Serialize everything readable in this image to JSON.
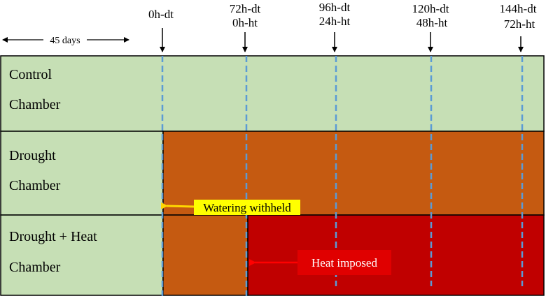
{
  "timepoints": [
    {
      "line1": "0h-dt",
      "line2": ""
    },
    {
      "line1": "72h-dt",
      "line2": "0h-ht"
    },
    {
      "line1": "96h-dt",
      "line2": "24h-ht"
    },
    {
      "line1": "120h-dt",
      "line2": "48h-ht"
    },
    {
      "line1": "144h-dt",
      "line2": "72h-ht"
    }
  ],
  "duration_label": "45 days",
  "rows": [
    {
      "line1": "Control",
      "line2": "Chamber"
    },
    {
      "line1": "Drought",
      "line2": "Chamber"
    },
    {
      "line1": "Drought + Heat",
      "line2": "Chamber"
    }
  ],
  "annotations": {
    "watering": "Watering withheld",
    "heat": "Heat imposed"
  },
  "colors": {
    "control": "#c6dfb5",
    "drought": "#c55a11",
    "heat": "#c00000",
    "guide_line": "#5b9bd5",
    "watering_label_bg": "#ffff00",
    "watering_arrow": "#ffd700",
    "heat_label_bg": "#e00000",
    "heat_arrow": "#ff0000"
  }
}
